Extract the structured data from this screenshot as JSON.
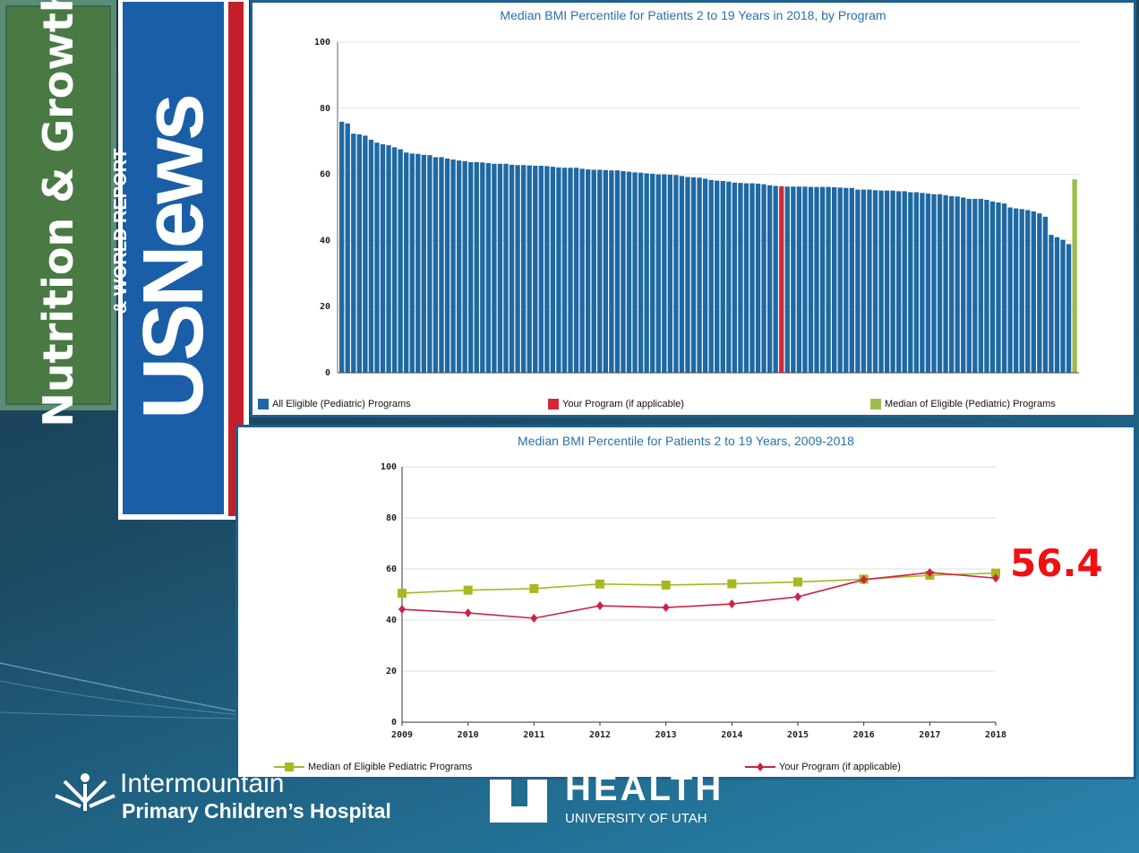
{
  "slide": {
    "section_title": "Nutrition & Growth",
    "logo_usnews": {
      "main": "USNews",
      "sub": "& WORLD REPORT"
    },
    "annotation": "56.4",
    "logo_intermountain": {
      "line1": "Intermountain",
      "line2": "Primary Children’s Hospital"
    },
    "logo_utah": {
      "line1": "HEALTH",
      "line2": "UNIVERSITY OF UTAH"
    }
  },
  "colors": {
    "program_bar": "#1f69a3",
    "your_program": "#d0283a",
    "median": "#9bbd4e",
    "line_median": "#a8b820",
    "line_yours": "#cc2244"
  },
  "chart_data": [
    {
      "type": "bar",
      "title": "Median BMI Percentile for Patients 2 to 19 Years in 2018, by Program",
      "ylim": [
        0,
        100
      ],
      "yticks": [
        "0",
        "20",
        "40",
        "60",
        "80",
        "100"
      ],
      "grid": true,
      "legend_position": "bottom",
      "legend": [
        "All Eligible (Pediatric) Programs",
        "Your Program (if applicable)",
        "Median of Eligible (Pediatric) Programs"
      ],
      "series": [
        {
          "name": "All Eligible (Pediatric) Programs",
          "values": [
            75.9,
            75.4,
            72.3,
            72.1,
            71.7,
            70.5,
            69.6,
            69.1,
            68.8,
            68.2,
            67.6,
            66.6,
            66.3,
            66.2,
            65.9,
            65.8,
            65.2,
            65.2,
            64.8,
            64.5,
            64.2,
            64.0,
            63.7,
            63.7,
            63.6,
            63.4,
            63.2,
            63.2,
            63.2,
            62.9,
            62.8,
            62.8,
            62.7,
            62.6,
            62.6,
            62.5,
            62.3,
            62.1,
            62.0,
            62.0,
            62.0,
            61.7,
            61.5,
            61.4,
            61.4,
            61.3,
            61.2,
            61.2,
            61.0,
            60.8,
            60.6,
            60.5,
            60.3,
            60.2,
            60.0,
            60.0,
            59.9,
            59.8,
            59.5,
            59.2,
            59.1,
            59.0,
            58.7,
            58.3,
            58.1,
            58.0,
            57.8,
            57.5,
            57.4,
            57.3,
            57.3,
            57.2,
            57.0,
            56.7,
            56.5,
            null,
            56.3,
            56.3,
            56.3,
            56.3,
            56.2,
            56.2,
            56.2,
            56.2,
            56.1,
            56.0,
            55.9,
            55.9,
            55.4,
            55.4,
            55.4,
            55.2,
            55.1,
            55.1,
            55.1,
            54.9,
            54.9,
            54.6,
            54.6,
            54.4,
            54.2,
            54.0,
            54.0,
            53.7,
            53.4,
            53.3,
            53.0,
            52.6,
            52.6,
            52.6,
            52.3,
            51.8,
            51.5,
            51.2,
            50.0,
            49.7,
            49.5,
            49.2,
            48.8,
            48.2,
            47.2,
            41.7,
            41.0,
            40.2,
            38.9,
            null
          ]
        },
        {
          "name": "Your Program (if applicable)",
          "index": 75,
          "value": 56.4
        },
        {
          "name": "Median of Eligible (Pediatric) Programs",
          "index": 125,
          "value": 58.5
        }
      ]
    },
    {
      "type": "line",
      "title": "Median BMI Percentile for Patients 2 to 19 Years, 2009-2018",
      "x": [
        "2009",
        "2010",
        "2011",
        "2012",
        "2013",
        "2014",
        "2015",
        "2016",
        "2017",
        "2018"
      ],
      "ylim": [
        0,
        100
      ],
      "yticks": [
        "0",
        "20",
        "40",
        "60",
        "80",
        "100"
      ],
      "grid": true,
      "legend_position": "bottom",
      "series": [
        {
          "name": "Median of Eligible Pediatric Programs",
          "marker": "square",
          "values": [
            50.5,
            51.7,
            52.3,
            54.1,
            53.7,
            54.2,
            54.9,
            56.0,
            57.5,
            58.4
          ]
        },
        {
          "name": "Your Program (if applicable)",
          "marker": "diamond",
          "values": [
            44.2,
            42.8,
            40.7,
            45.6,
            44.9,
            46.3,
            49.1,
            55.8,
            58.6,
            56.4
          ]
        }
      ]
    }
  ]
}
